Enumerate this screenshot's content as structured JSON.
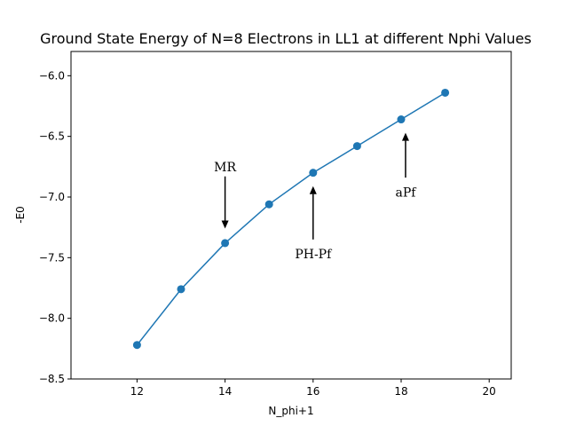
{
  "chart_data": {
    "type": "line",
    "title": "Ground State Energy of N=8 Electrons in LL1 at different Nphi Values",
    "xlabel": "N_phi+1",
    "ylabel": "-E0",
    "xlim": [
      10.5,
      20.5
    ],
    "ylim": [
      -8.5,
      -5.8
    ],
    "xticks": [
      12,
      14,
      16,
      18,
      20
    ],
    "yticks": [
      -8.5,
      -8.0,
      -7.5,
      -7.0,
      -6.5,
      -6.0
    ],
    "xtick_labels": [
      "12",
      "14",
      "16",
      "18",
      "20"
    ],
    "ytick_labels": [
      "−8.5",
      "−8.0",
      "−7.5",
      "−7.0",
      "−6.5",
      "−6.0"
    ],
    "grid": false,
    "series_color": "#1f77b4",
    "series": [
      {
        "x": [
          12,
          13,
          14,
          15,
          16,
          17,
          18,
          19
        ],
        "values": [
          -8.22,
          -7.76,
          -7.38,
          -7.06,
          -6.8,
          -6.58,
          -6.36,
          -6.14
        ]
      }
    ],
    "annotations": [
      {
        "text": "MR",
        "x": 14,
        "y_text": -6.75,
        "y_tail": -6.83,
        "y_head": -7.26,
        "direction": "down"
      },
      {
        "text": "PH-Pf",
        "x": 16,
        "y_text": -7.47,
        "y_tail": -7.35,
        "y_head": -6.91,
        "direction": "up"
      },
      {
        "text": "aPf",
        "x": 18.1,
        "y_text": -6.96,
        "y_tail": -6.84,
        "y_head": -6.47,
        "direction": "up"
      }
    ]
  }
}
